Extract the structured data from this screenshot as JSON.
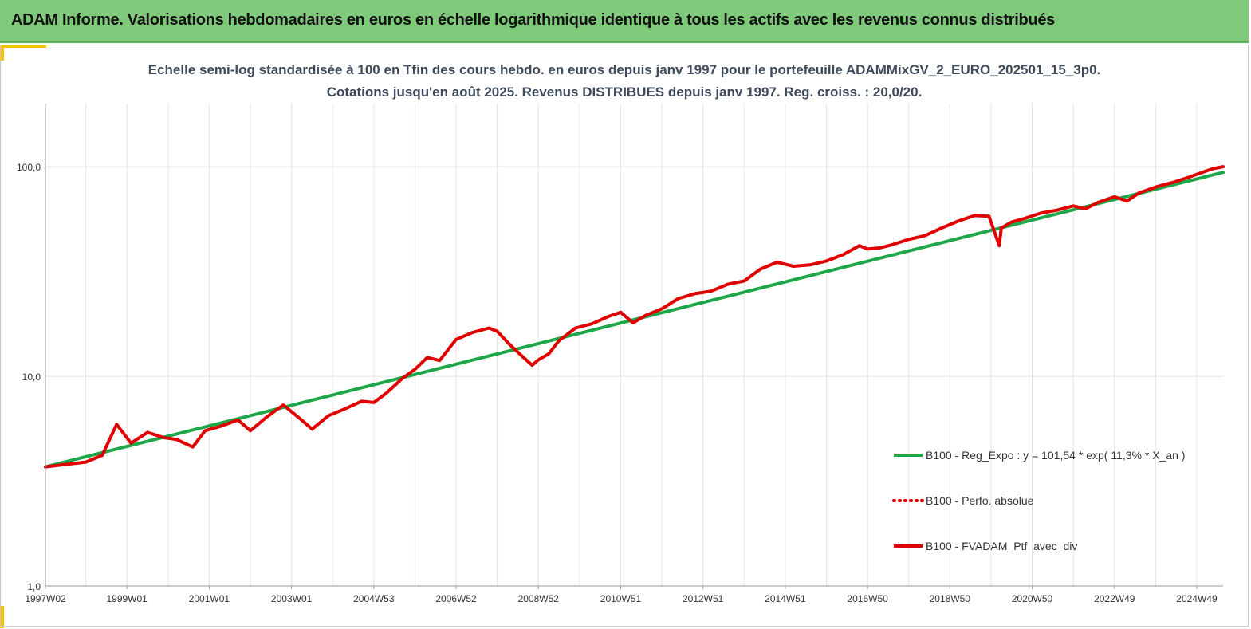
{
  "banner": {
    "title": "ADAM Informe. Valorisations hebdomadaires en euros en échelle logarithmique identique à tous les actifs avec les revenus connus distribués",
    "color": "#7fc97a"
  },
  "chart_data": {
    "type": "line",
    "title": "Echelle semi-log standardisée à 100 en Tfin des cours hebdo. en euros depuis janv 1997 pour le portefeuille ADAMMixGV_2_EURO_202501_15_3p0.",
    "subtitle": "Cotations jusqu'en août 2025. Revenus DISTRIBUES depuis janv 1997. Reg. croiss. : 20,0/20.",
    "xlabel": "",
    "ylabel": "",
    "y_scale": "log",
    "ylim": [
      1,
      200
    ],
    "y_ticks": [
      1,
      10,
      100
    ],
    "y_tick_labels": [
      "1,0",
      "10,0",
      "100,0"
    ],
    "xlim": [
      1997.02,
      2025.64
    ],
    "x_tick_labels": [
      "1997W02",
      "1999W01",
      "2001W01",
      "2003W01",
      "2004W53",
      "2006W52",
      "2008W52",
      "2010W51",
      "2012W51",
      "2014W51",
      "2016W50",
      "2018W50",
      "2020W50",
      "2022W49",
      "2024W49"
    ],
    "x_tick_positions": [
      1997.02,
      1999.0,
      2001.0,
      2003.0,
      2005.0,
      2007.0,
      2009.0,
      2011.0,
      2013.0,
      2015.0,
      2017.0,
      2019.0,
      2021.0,
      2023.0,
      2025.0
    ],
    "grid": true,
    "legend_position": "bottom-right",
    "series": [
      {
        "name": "B100 - Reg_Expo : y = 101,54 * exp( 11,3% *  X_an )",
        "color": "#1ea64a",
        "style": "solid",
        "x": [
          1997.02,
          2025.64
        ],
        "y": [
          3.7,
          94.0
        ]
      },
      {
        "name": "B100 - Perfo. absolue",
        "color": "#e00000",
        "style": "dotted",
        "x": [],
        "y": []
      },
      {
        "name": "B100 - FVADAM_Ptf_avec_div",
        "color": "#e00000",
        "style": "solid",
        "x": [
          1997.02,
          1997.5,
          1998.0,
          1998.4,
          1998.75,
          1999.1,
          1999.5,
          1999.9,
          2000.2,
          2000.6,
          2000.9,
          2001.3,
          2001.7,
          2002.0,
          2002.4,
          2002.8,
          2003.2,
          2003.5,
          2003.9,
          2004.3,
          2004.7,
          2005.0,
          2005.3,
          2005.7,
          2006.0,
          2006.3,
          2006.6,
          2007.0,
          2007.4,
          2007.8,
          2008.0,
          2008.3,
          2008.6,
          2008.85,
          2009.0,
          2009.25,
          2009.5,
          2009.9,
          2010.3,
          2010.7,
          2011.0,
          2011.3,
          2011.6,
          2012.0,
          2012.4,
          2012.8,
          2013.2,
          2013.6,
          2014.0,
          2014.4,
          2014.8,
          2015.2,
          2015.6,
          2016.0,
          2016.4,
          2016.8,
          2017.0,
          2017.3,
          2017.6,
          2018.0,
          2018.4,
          2018.8,
          2019.2,
          2019.6,
          2019.95,
          2020.2,
          2020.25,
          2020.5,
          2020.8,
          2021.2,
          2021.6,
          2022.0,
          2022.3,
          2022.6,
          2023.0,
          2023.3,
          2023.6,
          2024.0,
          2024.4,
          2024.8,
          2025.2,
          2025.4,
          2025.64
        ],
        "y": [
          3.7,
          3.8,
          3.9,
          4.2,
          5.9,
          4.8,
          5.4,
          5.1,
          5.0,
          4.6,
          5.5,
          5.8,
          6.2,
          5.5,
          6.4,
          7.3,
          6.3,
          5.6,
          6.5,
          7.0,
          7.6,
          7.5,
          8.3,
          9.8,
          10.8,
          12.3,
          11.9,
          15.0,
          16.2,
          17.0,
          16.4,
          14.2,
          12.5,
          11.3,
          12.0,
          12.8,
          14.8,
          17.0,
          17.8,
          19.3,
          20.2,
          18.0,
          19.5,
          21.0,
          23.5,
          24.8,
          25.5,
          27.5,
          28.5,
          32.5,
          35.0,
          33.5,
          34.0,
          35.5,
          38.0,
          42.0,
          40.5,
          41.0,
          42.5,
          45.0,
          47.0,
          51.0,
          55.0,
          58.5,
          58.0,
          42.0,
          51.0,
          54.5,
          56.5,
          60.0,
          62.0,
          65.0,
          63.0,
          67.5,
          72.0,
          68.5,
          75.0,
          80.0,
          84.0,
          89.0,
          95.0,
          98.0,
          100.0
        ]
      }
    ]
  }
}
